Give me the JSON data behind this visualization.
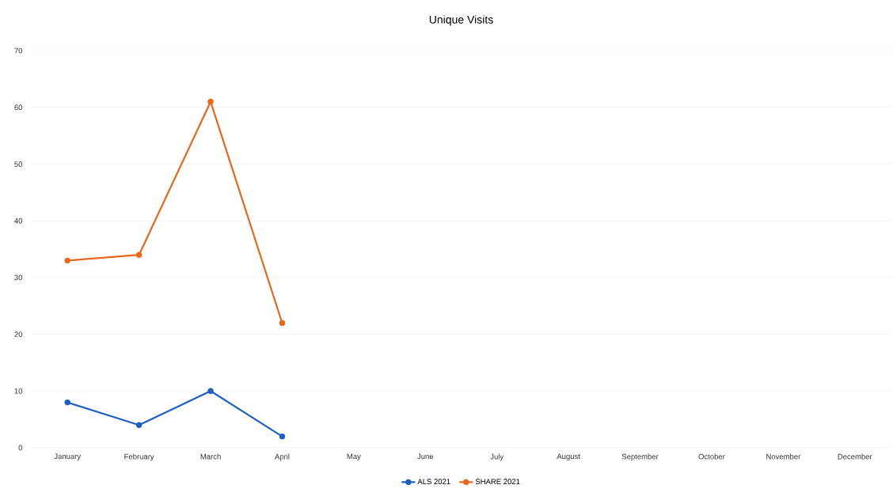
{
  "chart_data": {
    "type": "line",
    "title": "Unique Visits",
    "categories": [
      "January",
      "February",
      "March",
      "April",
      "May",
      "June",
      "July",
      "August",
      "September",
      "October",
      "November",
      "December"
    ],
    "series": [
      {
        "name": "ALS 2021",
        "color": "#1f5fbf",
        "values": [
          8,
          4,
          10,
          2,
          null,
          null,
          null,
          null,
          null,
          null,
          null,
          null
        ]
      },
      {
        "name": "SHARE 2021",
        "color": "#e8671c",
        "values": [
          33,
          34,
          61,
          22,
          null,
          null,
          null,
          null,
          null,
          null,
          null,
          null
        ]
      }
    ],
    "ylim": [
      0,
      70
    ],
    "yticks": [
      0,
      10,
      20,
      30,
      40,
      50,
      60,
      70
    ],
    "grid": "y",
    "legend": "bottom",
    "marker": "circle",
    "line_style": "solid"
  }
}
